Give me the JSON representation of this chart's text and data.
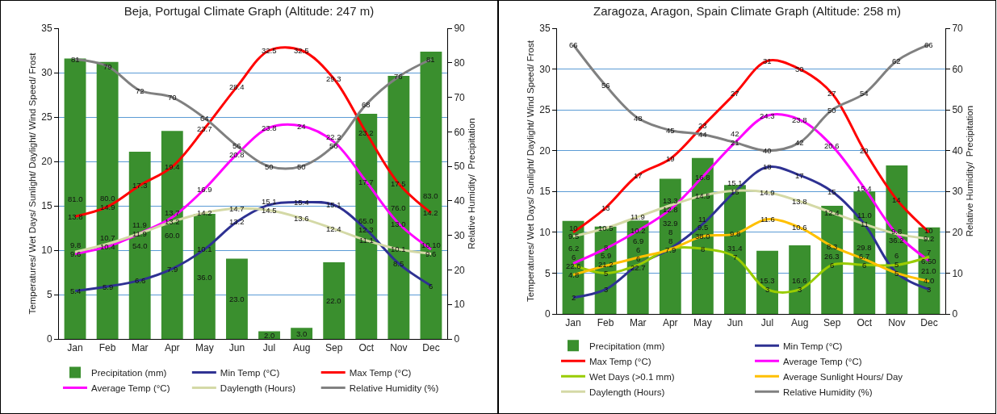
{
  "chart_data": [
    {
      "type": "bar",
      "title": "Beja, Portugal Climate Graph (Altitude: 247 m)",
      "ylabel": "Temperatures/ Wet Days/ Sunlight/ Daylight/ Wind Speed/ Frost",
      "y2label": "Relative Humidity/  Precipitation",
      "categories": [
        "Jan",
        "Feb",
        "Mar",
        "Apr",
        "May",
        "Jun",
        "Jul",
        "Aug",
        "Sep",
        "Oct",
        "Nov",
        "Dec"
      ],
      "ylim": [
        0,
        35
      ],
      "yticks": [
        0,
        5,
        10,
        15,
        20,
        25,
        30,
        35
      ],
      "y2lim": [
        0,
        90
      ],
      "y2ticks": [
        0,
        10,
        20,
        30,
        40,
        50,
        60,
        70,
        80,
        90
      ],
      "grid": "y",
      "legend": "bottom",
      "marker": "none",
      "series": [
        {
          "axis": "y2",
          "name": "Precipitation (mm)",
          "color": "#3a8f2e",
          "values": [
            81,
            80,
            54,
            60,
            36,
            23,
            2,
            3,
            22,
            65,
            76,
            83
          ],
          "value_labels": [
            "81.0",
            "80.0",
            "54.0",
            "60.0",
            "36.0",
            "23.0",
            "2.0",
            "3.0",
            "22.0",
            "65.0",
            "76.0",
            "83.0"
          ]
        },
        {
          "type": "line",
          "name": "Min Temp (°C)",
          "color": "#2e3192",
          "values": [
            5.4,
            5.9,
            6.6,
            7.9,
            10.1,
            13.2,
            15.1,
            15.4,
            15.1,
            12.3,
            8.5,
            6
          ],
          "value_labels": [
            "5.4",
            "5.9",
            "6.6",
            "7.9",
            "10.1",
            "13.2",
            "15.1",
            "15.4",
            "15.1",
            "12.3",
            "8.5",
            "6"
          ]
        },
        {
          "type": "line",
          "name": "Max Temp (°C)",
          "color": "#ff0000",
          "values": [
            13.8,
            14.9,
            17.3,
            19.4,
            23.7,
            28.4,
            32.5,
            32.5,
            29.3,
            23.2,
            17.5,
            14.2
          ],
          "value_labels": [
            "13.8",
            "14.9",
            "17.3",
            "19.4",
            "23.7",
            "28.4",
            "32.5",
            "32.5",
            "29.3",
            "23.2",
            "17.5",
            "14.2"
          ]
        },
        {
          "type": "line",
          "name": "Average Temp (°C)",
          "color": "#ff00ff",
          "values": [
            9.6,
            10.4,
            11.9,
            13.7,
            16.9,
            20.8,
            23.8,
            24,
            22.2,
            17.7,
            13,
            10.1
          ],
          "value_labels": [
            "9.6",
            "10.4",
            "11.9",
            "13.7",
            "16.9",
            "20.8",
            "23.8",
            "24",
            "22.2",
            "17.7",
            "13.0",
            "10.10"
          ]
        },
        {
          "type": "line",
          "name": "Daylength (Hours)",
          "color": "#d4d9a6",
          "values": [
            9.8,
            10.7,
            11.9,
            13.2,
            14.2,
            14.7,
            14.5,
            13.6,
            12.4,
            11.1,
            10.1,
            9.6
          ],
          "value_labels": [
            "9.8",
            "10.7",
            "11.9",
            "13.2",
            "14.2",
            "14.7",
            "14.5",
            "13.6",
            "12.4",
            "11.1",
            "10.1",
            "9.6"
          ]
        },
        {
          "type": "line",
          "axis": "y2",
          "name": "Relative Humidity (%)",
          "color": "#808080",
          "values": [
            81,
            79,
            72,
            70,
            64,
            56,
            50,
            50,
            56,
            68,
            76,
            81
          ],
          "value_labels": [
            "81",
            "79",
            "72",
            "70",
            "64",
            "56",
            "50",
            "50",
            "56",
            "68",
            "76",
            "81"
          ]
        }
      ]
    },
    {
      "type": "bar",
      "title": "Zaragoza, Aragon, Spain Climate Graph (Altitude: 258 m)",
      "ylabel": "Temperatures/ Wet Days/ Sunlight/ Daylight/ Wind Speed/ Frost",
      "y2label": "Relative Humidity/  Precipitation",
      "categories": [
        "Jan",
        "Feb",
        "Mar",
        "Apr",
        "May",
        "Jun",
        "Jul",
        "Aug",
        "Sep",
        "Oct",
        "Nov",
        "Dec"
      ],
      "ylim": [
        0,
        35
      ],
      "yticks": [
        0,
        5,
        10,
        15,
        20,
        25,
        30,
        35
      ],
      "y2lim": [
        0,
        70
      ],
      "y2ticks": [
        0,
        10,
        20,
        30,
        40,
        50,
        60,
        70
      ],
      "grid": "y",
      "legend": "bottom",
      "marker": "none",
      "series": [
        {
          "axis": "y2",
          "name": "Precipitation (mm)",
          "color": "#3a8f2e",
          "values": [
            22.6,
            21.2,
            22.7,
            32.9,
            38,
            31.4,
            15.3,
            16.6,
            26.3,
            29.8,
            36.2,
            21
          ],
          "value_labels": [
            "22.6",
            "21.2",
            "22.7",
            "32.9",
            "38.0",
            "31.4",
            "15.3",
            "16.6",
            "26.3",
            "29.8",
            "36.2",
            "21.0"
          ]
        },
        {
          "type": "line",
          "name": "Min Temp (°C)",
          "color": "#2e3192",
          "values": [
            2,
            3,
            6,
            8,
            11,
            15,
            18,
            17,
            15,
            11,
            5,
            3
          ],
          "value_labels": [
            "2",
            "3",
            "6",
            "8",
            "11",
            "15",
            "18",
            "17",
            "15",
            "11",
            "5",
            "3"
          ]
        },
        {
          "type": "line",
          "name": "Max Temp (°C)",
          "color": "#ff0000",
          "values": [
            10,
            13,
            17,
            19,
            23,
            27,
            31,
            30,
            27,
            20,
            14,
            10
          ],
          "value_labels": [
            "10",
            "13",
            "17",
            "19",
            "23",
            "27",
            "31",
            "30",
            "27",
            "20",
            "14",
            "10"
          ]
        },
        {
          "type": "line",
          "name": "Average Temp (°C)",
          "color": "#ff00ff",
          "values": [
            6.2,
            8,
            10.2,
            12.8,
            16.8,
            21,
            24.3,
            23.8,
            20.6,
            15.4,
            9.8,
            6.5
          ],
          "value_labels": [
            "6.2",
            "8",
            "10.2",
            "12.8",
            "16.8",
            "21",
            "24.3",
            "23.8",
            "20.6",
            "15.4",
            "9.8",
            "6.50"
          ]
        },
        {
          "type": "line",
          "name": "Wet Days (>0.1 mm)",
          "color": "#99cc00",
          "values": [
            6,
            5,
            6,
            8,
            8,
            7,
            3,
            3,
            6,
            6,
            6,
            7
          ],
          "value_labels": [
            "6",
            "5",
            "6",
            "8",
            "8",
            "7",
            "3",
            "3",
            "6",
            "6",
            "6",
            "7"
          ]
        },
        {
          "type": "line",
          "name": "Average Sunlight Hours/ Day",
          "color": "#ffc000",
          "values": [
            4.8,
            5.9,
            6.9,
            7.9,
            9.5,
            9.8,
            11.6,
            10.6,
            8.3,
            6.7,
            5,
            4
          ],
          "value_labels": [
            "4.8",
            "5.9",
            "6.9",
            "7.9",
            "9.5",
            "9.8",
            "11.6",
            "10.6",
            "8.3",
            "6.7",
            "5",
            "4.0"
          ]
        },
        {
          "type": "line",
          "name": "Daylength (Hours)",
          "color": "#d4d9a6",
          "values": [
            9.5,
            10.5,
            11.9,
            13.3,
            14.5,
            15.1,
            14.9,
            13.8,
            12.4,
            11,
            9.8,
            9.2
          ],
          "value_labels": [
            "9.5",
            "10.5",
            "11.9",
            "13.3",
            "14.5",
            "15.1",
            "14.9",
            "13.8",
            "12.4",
            "11.0",
            null,
            "9.2"
          ]
        },
        {
          "type": "line",
          "axis": "y2",
          "name": "Relative Humidity (%)",
          "color": "#808080",
          "values": [
            66,
            56,
            48,
            45,
            44,
            42,
            40,
            42,
            50,
            54,
            62,
            66
          ],
          "value_labels": [
            "66",
            "56",
            "48",
            "45",
            "44",
            "42",
            "40",
            "42",
            "50",
            "54",
            "62",
            "66"
          ]
        }
      ]
    }
  ]
}
